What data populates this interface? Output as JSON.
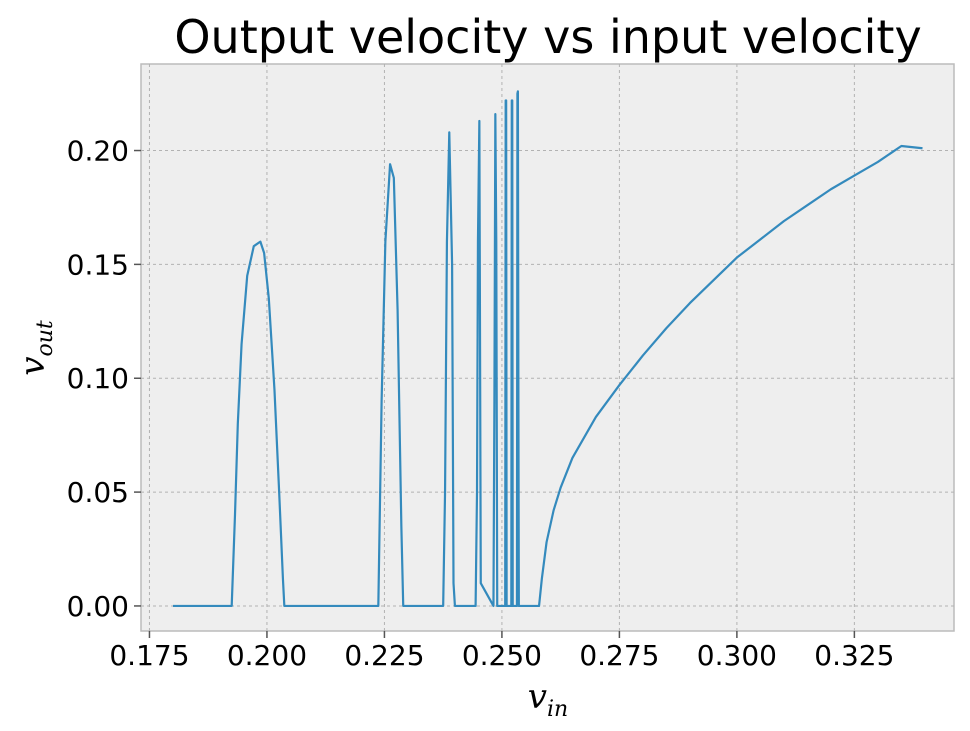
{
  "chart_data": {
    "type": "line",
    "title": "Output velocity vs input velocity",
    "xlabel": {
      "base": "v",
      "sub": "in"
    },
    "ylabel": {
      "base": "v",
      "sub": "out"
    },
    "xlim": [
      0.1732,
      0.3462
    ],
    "ylim": [
      -0.011,
      0.238
    ],
    "xticks": [
      0.175,
      0.2,
      0.225,
      0.25,
      0.275,
      0.3,
      0.325
    ],
    "xtick_labels": [
      "0.175",
      "0.200",
      "0.225",
      "0.250",
      "0.275",
      "0.300",
      "0.325"
    ],
    "yticks": [
      0.0,
      0.05,
      0.1,
      0.15,
      0.2
    ],
    "ytick_labels": [
      "0.00",
      "0.05",
      "0.10",
      "0.15",
      "0.20"
    ],
    "grid": true,
    "color": "#348abd",
    "series": [
      {
        "x": [
          0.18,
          0.1925,
          0.1932,
          0.1938,
          0.1946,
          0.1958,
          0.1972,
          0.1986,
          0.1994,
          0.2004,
          0.2016,
          0.2026,
          0.2034,
          0.2037,
          0.2237,
          0.2244,
          0.2252,
          0.2262,
          0.227,
          0.2278,
          0.2286,
          0.229,
          0.2375,
          0.2379,
          0.2383,
          0.2388,
          0.2394,
          0.2397,
          0.24,
          0.2444,
          0.2447,
          0.2449,
          0.2452,
          0.2455,
          0.2482,
          0.2484,
          0.2486,
          0.2488,
          0.249,
          0.2507,
          0.2508,
          0.2509,
          0.251,
          0.252,
          0.2521,
          0.2522,
          0.2523,
          0.2532,
          0.2533,
          0.2534,
          0.2535,
          0.2536,
          0.2579,
          0.2585,
          0.2595,
          0.261,
          0.2625,
          0.265,
          0.27,
          0.275,
          0.28,
          0.285,
          0.29,
          0.295,
          0.3,
          0.305,
          0.31,
          0.315,
          0.32,
          0.325,
          0.33,
          0.335,
          0.3395
        ],
        "y": [
          0.0,
          0.0,
          0.04,
          0.08,
          0.115,
          0.145,
          0.158,
          0.16,
          0.155,
          0.135,
          0.095,
          0.05,
          0.012,
          0.0,
          0.0,
          0.09,
          0.16,
          0.194,
          0.188,
          0.13,
          0.035,
          0.0,
          0.0,
          0.05,
          0.16,
          0.208,
          0.15,
          0.01,
          0.0,
          0.0,
          0.05,
          0.16,
          0.213,
          0.01,
          0.0,
          0.09,
          0.216,
          0.16,
          0.0,
          0.0,
          0.222,
          0.222,
          0.0,
          0.0,
          0.222,
          0.222,
          0.0,
          0.0,
          0.225,
          0.226,
          0.1,
          0.0,
          0.0,
          0.012,
          0.028,
          0.042,
          0.052,
          0.065,
          0.083,
          0.097,
          0.11,
          0.122,
          0.133,
          0.143,
          0.153,
          0.161,
          0.169,
          0.176,
          0.183,
          0.189,
          0.195,
          0.202,
          0.201
        ]
      }
    ]
  }
}
